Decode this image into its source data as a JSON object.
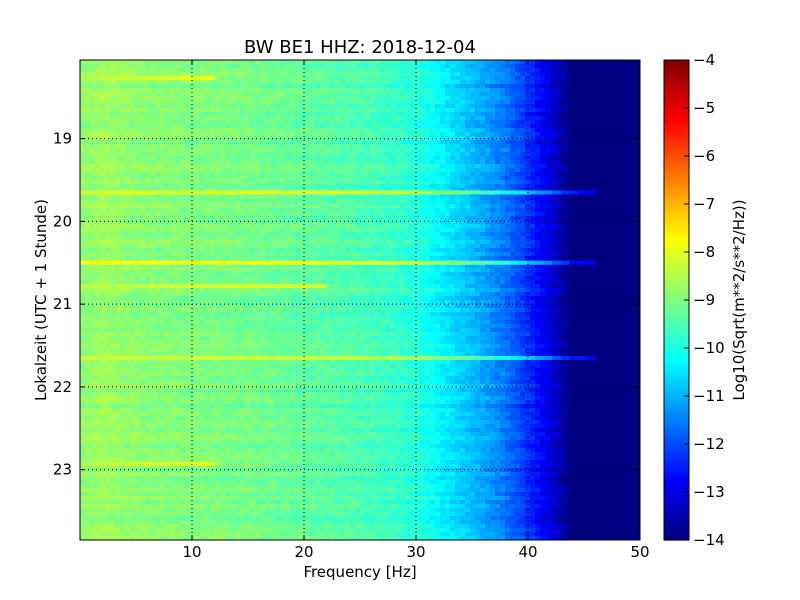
{
  "chart_data": {
    "type": "heatmap",
    "title": "BW BE1 HHZ: 2018-12-04",
    "xlabel": "Frequency [Hz]",
    "ylabel": "Lokalzeit (UTC + 1 Stunde)",
    "xlim": [
      0,
      50
    ],
    "ylim": [
      18.05,
      23.85
    ],
    "y_inverted": true,
    "grid": true,
    "grid_style": "dotted",
    "x_ticks": [
      10,
      20,
      30,
      40,
      50
    ],
    "x_tick_labels": [
      "10",
      "20",
      "30",
      "40",
      "50"
    ],
    "y_ticks": [
      19,
      20,
      21,
      22,
      23
    ],
    "y_tick_labels": [
      "19",
      "20",
      "21",
      "22",
      "23"
    ],
    "colorbar": {
      "label": "Log10(Sqrt(m**2/s**2/Hz))",
      "range": [
        -14,
        -4
      ],
      "ticks": [
        -4,
        -5,
        -6,
        -7,
        -8,
        -9,
        -10,
        -11,
        -12,
        -13,
        -14
      ],
      "tick_labels": [
        "−4",
        "−5",
        "−6",
        "−7",
        "−8",
        "−9",
        "−10",
        "−11",
        "−12",
        "−13",
        "−14"
      ],
      "colormap": "jet",
      "position": "right"
    },
    "background_profile": {
      "frequency_hz": [
        0,
        2,
        5,
        10,
        15,
        20,
        25,
        28,
        30,
        32,
        34,
        36,
        38,
        40,
        42,
        43,
        44,
        50
      ],
      "log_amplitude": [
        -8.9,
        -8.7,
        -8.9,
        -9.0,
        -9.1,
        -9.3,
        -9.5,
        -9.7,
        -9.9,
        -10.3,
        -10.7,
        -11.1,
        -11.6,
        -12.3,
        -13.1,
        -13.6,
        -14.0,
        -14.0
      ]
    },
    "event_bands": [
      {
        "time": 18.27,
        "max_frequency_hz": 12,
        "log_amplitude": -8.6
      },
      {
        "time": 19.65,
        "max_frequency_hz": 46,
        "log_amplitude": -8.1
      },
      {
        "time": 20.5,
        "max_frequency_hz": 46,
        "log_amplitude": -7.7
      },
      {
        "time": 20.78,
        "max_frequency_hz": 22,
        "log_amplitude": -8.5
      },
      {
        "time": 21.65,
        "max_frequency_hz": 46,
        "log_amplitude": -8.4
      },
      {
        "time": 22.93,
        "max_frequency_hz": 12,
        "log_amplitude": -8.6
      }
    ]
  },
  "colors": {
    "frame": "#000000",
    "grid": "#000000",
    "background": "#ffffff"
  }
}
